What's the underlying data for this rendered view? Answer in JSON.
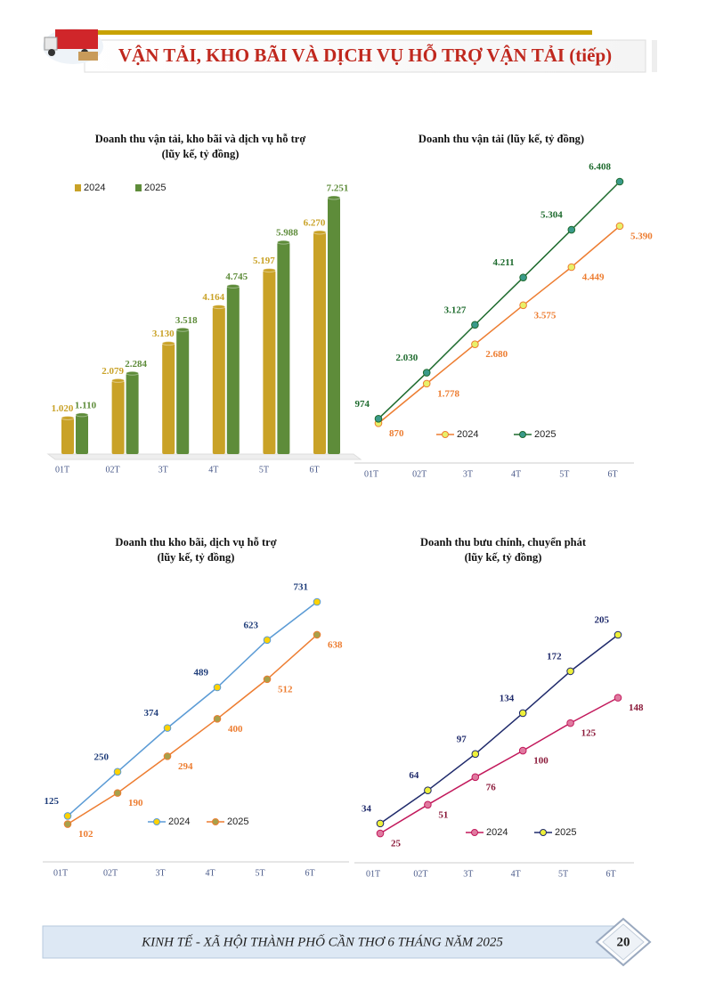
{
  "header": {
    "title": "VẬN TẢI, KHO BÃI VÀ DỊCH VỤ HỖ TRỢ VẬN TẢI (tiếp)"
  },
  "chart_data": [
    {
      "type": "bar",
      "title": "Doanh thu vận tải, kho bãi và dịch vụ hỗ trợ",
      "subtitle": "(lũy kế, tỷ đồng)",
      "categories": [
        "01T",
        "02T",
        "3T",
        "4T",
        "5T",
        "6T"
      ],
      "series": [
        {
          "name": "2024",
          "color": "#c9a227",
          "values": [
            1020,
            2079,
            3130,
            4164,
            5197,
            6270
          ],
          "value_labels": [
            "1.020",
            "2.079",
            "3.130",
            "4.164",
            "5.197",
            "6.270"
          ]
        },
        {
          "name": "2025",
          "color": "#5e8c3a",
          "values": [
            1110,
            2284,
            3518,
            4745,
            5988,
            7251
          ],
          "value_labels": [
            "1.110",
            "2.284",
            "3.518",
            "4.745",
            "5.988",
            "7.251"
          ]
        }
      ]
    },
    {
      "type": "line",
      "title": "Doanh thu vận tải (lũy kế, tỷ đồng)",
      "categories": [
        "01T",
        "02T",
        "3T",
        "4T",
        "5T",
        "6T"
      ],
      "series": [
        {
          "name": "2024",
          "color": "#ed7d31",
          "marker_color": "#e8f06a",
          "values": [
            870,
            1778,
            2680,
            3575,
            4449,
            5390
          ],
          "value_labels": [
            "870",
            "1.778",
            "2.680",
            "3.575",
            "4.449",
            "5.390"
          ]
        },
        {
          "name": "2025",
          "color": "#1e6b2e",
          "marker_color": "#3a9a8a",
          "values": [
            974,
            2030,
            3127,
            4211,
            5304,
            6408
          ],
          "value_labels": [
            "974",
            "2.030",
            "3.127",
            "4.211",
            "5.304",
            "6.408"
          ]
        }
      ]
    },
    {
      "type": "line",
      "title": "Doanh thu kho bãi, dịch vụ hỗ trợ",
      "subtitle": "(lũy kế, tỷ đồng)",
      "categories": [
        "01T",
        "02T",
        "3T",
        "4T",
        "5T",
        "6T"
      ],
      "series": [
        {
          "name": "2024",
          "color": "#5b9bd5",
          "marker_color": "#ffd200",
          "label_color": "#1f3d7a",
          "values": [
            125,
            250,
            374,
            489,
            623,
            731
          ]
        },
        {
          "name": "2025",
          "color": "#ed7d31",
          "marker_color": "#a8a04a",
          "values": [
            102,
            190,
            294,
            400,
            512,
            638
          ]
        }
      ]
    },
    {
      "type": "line",
      "title": "Doanh thu bưu chính, chuyển phát",
      "subtitle": "(lũy kế, tỷ đồng)",
      "categories": [
        "01T",
        "02T",
        "3T",
        "4T",
        "5T",
        "6T"
      ],
      "series": [
        {
          "name": "2024",
          "color": "#c2185b",
          "marker_color": "#e07aa0",
          "label_color": "#8b1a3a",
          "values": [
            25,
            51,
            76,
            100,
            125,
            148
          ]
        },
        {
          "name": "2025",
          "color": "#1f2a6b",
          "marker_color": "#eef03a",
          "label_color": "#1f2a6b",
          "values": [
            34,
            64,
            97,
            134,
            172,
            205
          ]
        }
      ]
    }
  ],
  "footer": {
    "text": "KINH TẾ - XÃ HỘI THÀNH PHỐ CẦN THƠ 6 THÁNG NĂM 2025",
    "page": "20"
  }
}
